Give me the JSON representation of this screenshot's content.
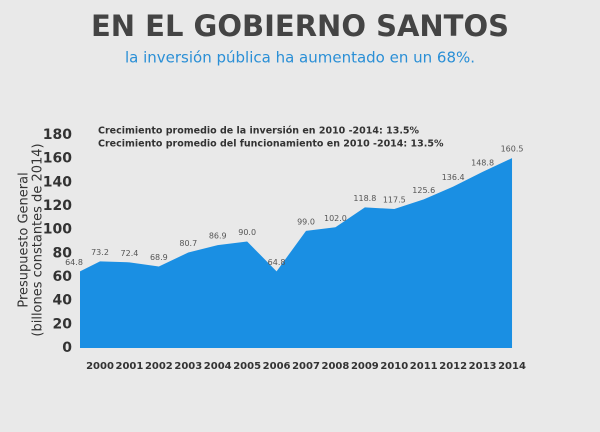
{
  "chart_data": {
    "type": "area",
    "title": "EN EL GOBIERNO SANTOS",
    "subtitle": "la inversión pública ha aumentado en un 68%.",
    "annotations": [
      "Crecimiento promedio de la inversión en 2010 -2014: 13.5%",
      "Crecimiento promedio del funcionamiento en 2010 -2014: 13.5%"
    ],
    "y_label": [
      "Presupuesto General",
      "(billones constantes de 2014)"
    ],
    "categories": [
      null,
      "2000",
      "2001",
      "2002",
      "2003",
      "2004",
      "2005",
      "2006",
      "2007",
      "2008",
      "2009",
      "2010",
      "2011",
      "2012",
      "2013",
      "2014"
    ],
    "values": [
      64.8,
      73.2,
      72.4,
      68.9,
      80.7,
      86.9,
      90.0,
      64.8,
      99.0,
      102.0,
      118.8,
      117.5,
      125.6,
      136.4,
      148.8,
      160.5
    ],
    "value_labels": [
      "64.8",
      "73.2",
      "72.4",
      "68.9",
      "80.7",
      "86.9",
      "90.0",
      "64.8",
      "99.0",
      "102.0",
      "118.8",
      "117.5",
      "125.6",
      "136.4",
      "148.8",
      "160.5"
    ],
    "color": "#1a8fe3",
    "ylim": [
      0,
      180
    ],
    "yticks": [
      0,
      20,
      40,
      60,
      80,
      100,
      120,
      140,
      160,
      180
    ]
  }
}
